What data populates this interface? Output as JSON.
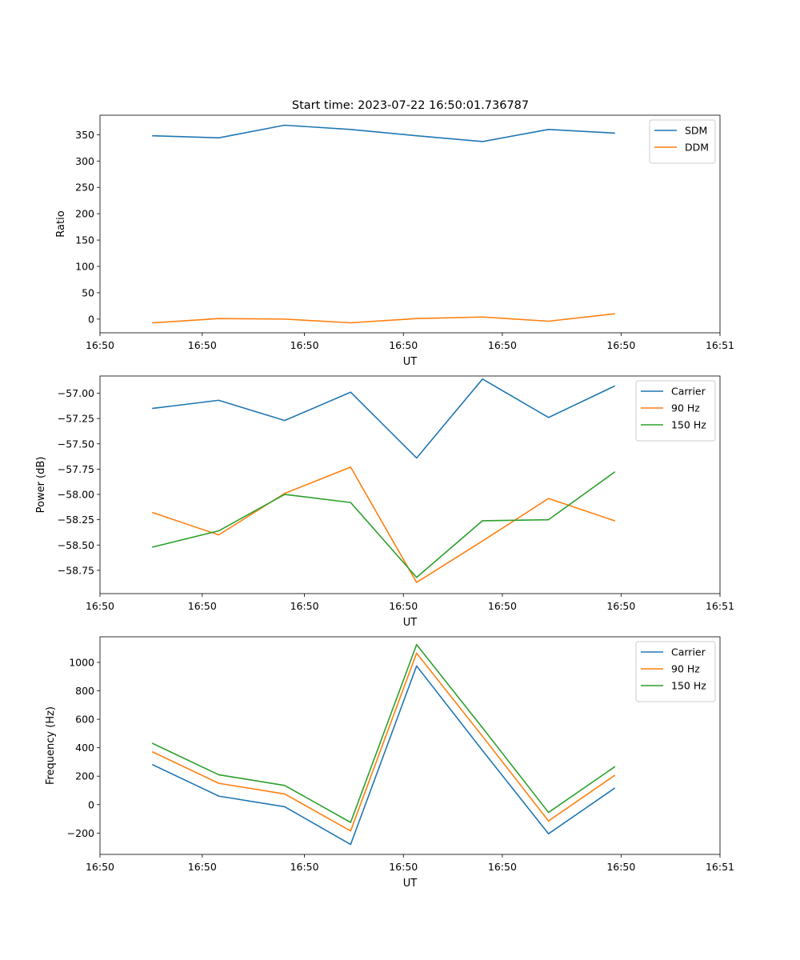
{
  "title": "Start time: 2023-07-22 16:50:01.736787",
  "colors": {
    "c0": "#1f77b4",
    "c1": "#ff7f0e",
    "c2": "#2ca02c"
  },
  "chart_data": [
    {
      "type": "line",
      "title": "Start time: 2023-07-22 16:50:01.736787",
      "xlabel": "UT",
      "ylabel": "Ratio",
      "x": [
        1,
        2,
        3,
        4,
        5,
        6,
        7,
        8
      ],
      "xlim": [
        0.2,
        9.6
      ],
      "xticks": [
        0.2,
        1.75,
        3.3,
        4.8,
        6.3,
        8.1,
        9.6
      ],
      "xtick_labels": [
        "16:50",
        "16:50",
        "16:50",
        "16:50",
        "16:50",
        "16:50",
        "16:51"
      ],
      "ylim": [
        -26,
        387
      ],
      "yticks": [
        0,
        50,
        100,
        150,
        200,
        250,
        300,
        350
      ],
      "ytick_labels": [
        "0",
        "50",
        "100",
        "150",
        "200",
        "250",
        "300",
        "350"
      ],
      "legend": "upper right",
      "series": [
        {
          "name": "SDM",
          "color": "#1f77b4",
          "values": [
            348,
            344,
            368,
            360,
            348,
            337,
            360,
            353
          ]
        },
        {
          "name": "DDM",
          "color": "#ff7f0e",
          "values": [
            -7,
            1,
            0,
            -7,
            1,
            4,
            -4,
            10
          ]
        }
      ]
    },
    {
      "type": "line",
      "title": "",
      "xlabel": "UT",
      "ylabel": "Power (dB)",
      "x": [
        1,
        2,
        3,
        4,
        5,
        6,
        7,
        8
      ],
      "xlim": [
        0.2,
        9.6
      ],
      "xticks": [
        0.2,
        1.75,
        3.3,
        4.8,
        6.3,
        8.1,
        9.6
      ],
      "xtick_labels": [
        "16:50",
        "16:50",
        "16:50",
        "16:50",
        "16:50",
        "16:50",
        "16:51"
      ],
      "ylim": [
        -58.98,
        -56.83
      ],
      "yticks": [
        -58.75,
        -58.5,
        -58.25,
        -58.0,
        -57.75,
        -57.5,
        -57.25,
        -57.0
      ],
      "ytick_labels": [
        "−58.75",
        "−58.50",
        "−58.25",
        "−58.00",
        "−57.75",
        "−57.50",
        "−57.25",
        "−57.00"
      ],
      "legend": "upper right",
      "series": [
        {
          "name": "Carrier",
          "color": "#1f77b4",
          "values": [
            -57.15,
            -57.07,
            -57.27,
            -56.99,
            -57.64,
            -56.86,
            -57.24,
            -56.93
          ]
        },
        {
          "name": "90 Hz",
          "color": "#ff7f0e",
          "values": [
            -58.18,
            -58.4,
            -57.99,
            -57.73,
            -58.87,
            -58.46,
            -58.04,
            -58.26
          ]
        },
        {
          "name": "150 Hz",
          "color": "#2ca02c",
          "values": [
            -58.52,
            -58.36,
            -58.0,
            -58.08,
            -58.82,
            -58.26,
            -58.25,
            -57.78
          ]
        }
      ]
    },
    {
      "type": "line",
      "title": "",
      "xlabel": "UT",
      "ylabel": "Frequency (Hz)",
      "x": [
        1,
        2,
        3,
        4,
        5,
        6,
        7,
        8
      ],
      "xlim": [
        0.2,
        9.6
      ],
      "xticks": [
        0.2,
        1.75,
        3.3,
        4.8,
        6.3,
        8.1,
        9.6
      ],
      "xtick_labels": [
        "16:50",
        "16:50",
        "16:50",
        "16:50",
        "16:50",
        "16:50",
        "16:51"
      ],
      "ylim": [
        -350,
        1180
      ],
      "yticks": [
        -200,
        0,
        200,
        400,
        600,
        800,
        1000
      ],
      "ytick_labels": [
        "−200",
        "0",
        "200",
        "400",
        "600",
        "800",
        "1000"
      ],
      "legend": "upper right",
      "series": [
        {
          "name": "Carrier",
          "color": "#1f77b4",
          "values": [
            280,
            60,
            -15,
            -280,
            975,
            380,
            -205,
            115
          ]
        },
        {
          "name": "90 Hz",
          "color": "#ff7f0e",
          "values": [
            370,
            150,
            75,
            -185,
            1065,
            480,
            -115,
            205
          ]
        },
        {
          "name": "150 Hz",
          "color": "#2ca02c",
          "values": [
            430,
            210,
            135,
            -125,
            1125,
            540,
            -55,
            265
          ]
        }
      ]
    }
  ]
}
